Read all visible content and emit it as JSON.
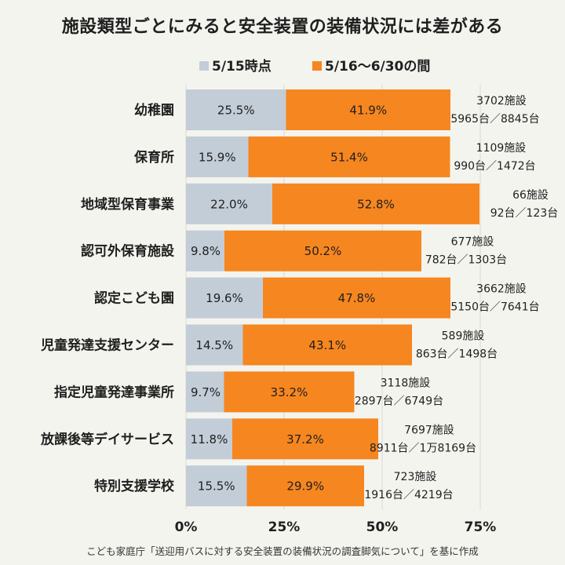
{
  "chart_data": {
    "type": "bar",
    "stacked": true,
    "orientation": "horizontal",
    "title": "施設類型ごとにみると安全装置の装備状況には差がある",
    "legend_position": "top",
    "categories": [
      "幼稚園",
      "保育所",
      "地域型保育事業",
      "認可外保育施設",
      "認定こども園",
      "児童発達支援センター",
      "指定児童発達事業所",
      "放課後等デイサービス",
      "特別支援学校"
    ],
    "series": [
      {
        "name": "5/15時点",
        "color": "#c2cdd8",
        "values": [
          25.5,
          15.9,
          22.0,
          9.8,
          19.6,
          14.5,
          9.7,
          11.8,
          15.5
        ],
        "labels": [
          "25.5%",
          "15.9%",
          "22.0%",
          "9.8%",
          "19.6%",
          "14.5%",
          "9.7%",
          "11.8%",
          "15.5%"
        ]
      },
      {
        "name": "5/16〜6/30の間",
        "color": "#f6861f",
        "values": [
          41.9,
          51.4,
          52.8,
          50.2,
          47.8,
          43.1,
          33.2,
          37.2,
          29.9
        ],
        "labels": [
          "41.9%",
          "51.4%",
          "52.8%",
          "50.2%",
          "47.8%",
          "43.1%",
          "33.2%",
          "37.2%",
          "29.9%"
        ]
      }
    ],
    "annotations": [
      {
        "facilities": "3702施設",
        "units": "5965台／8845台"
      },
      {
        "facilities": "1109施設",
        "units": "990台／1472台"
      },
      {
        "facilities": "66施設",
        "units": "92台／123台"
      },
      {
        "facilities": "677施設",
        "units": "782台／1303台"
      },
      {
        "facilities": "3662施設",
        "units": "5150台／7641台"
      },
      {
        "facilities": "589施設",
        "units": "863台／1498台"
      },
      {
        "facilities": "3118施設",
        "units": "2897台／6749台"
      },
      {
        "facilities": "7697施設",
        "units": "8911台／1万8169台"
      },
      {
        "facilities": "723施設",
        "units": "1916台／4219台"
      }
    ],
    "xlim": [
      0,
      75
    ],
    "xticks": [
      0,
      25,
      50,
      75
    ],
    "xtick_labels": [
      "0%",
      "25%",
      "50%",
      "75%"
    ],
    "grid": true
  },
  "source": "こども家庭庁「送迎用バスに対する安全装置の装備状況の調査脚気について」を基に作成"
}
